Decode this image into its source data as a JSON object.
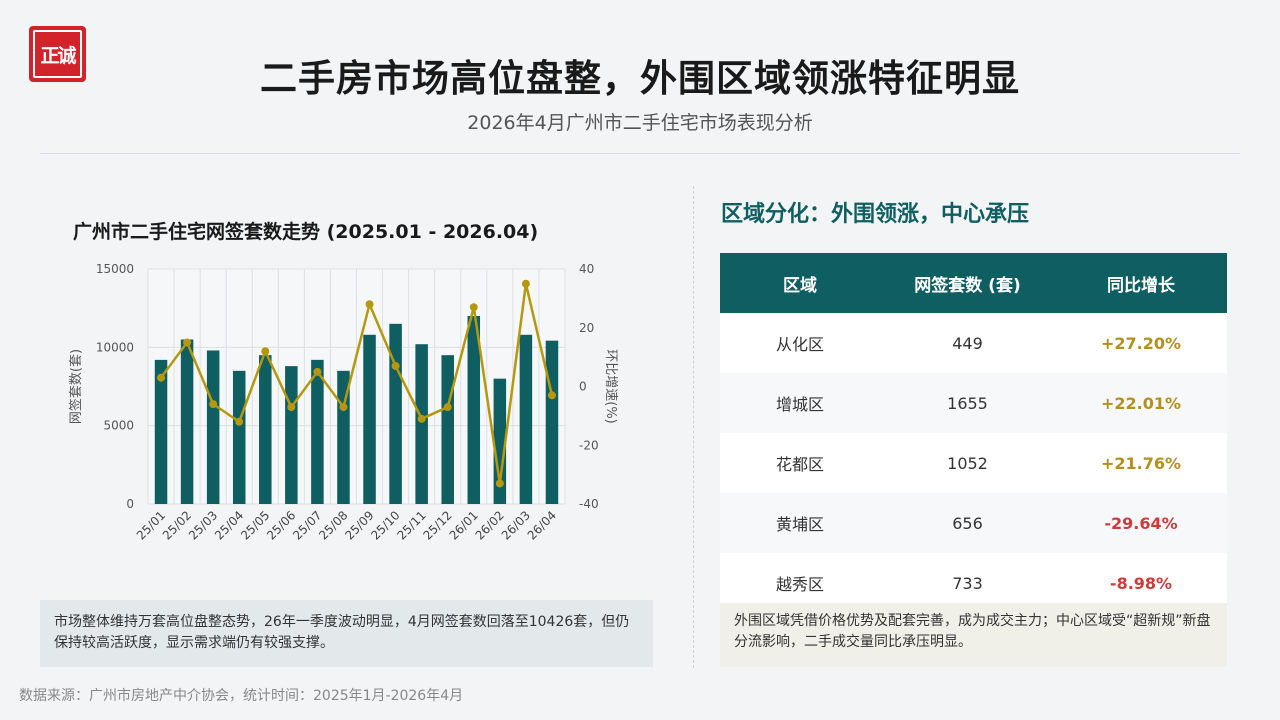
{
  "logo_text": "正诚",
  "title": "二手房市场高位盘整，外围区域领涨特征明显",
  "subtitle": "2026年4月广州市二手住宅市场表现分析",
  "left_note": "市场整体维持万套高位盘整态势，26年一季度波动明显，4月网签套数回落至10426套，但仍保持较高活跃度，显示需求端仍有较强支撑。",
  "region_title": "区域分化：外围领涨，中心承压",
  "table": {
    "headers": [
      "区域",
      "网签套数 (套)",
      "同比增长"
    ],
    "rows": [
      {
        "region": "从化区",
        "count": "449",
        "growth": "+27.20%",
        "sign": "pos"
      },
      {
        "region": "增城区",
        "count": "1655",
        "growth": "+22.01%",
        "sign": "pos"
      },
      {
        "region": "花都区",
        "count": "1052",
        "growth": "+21.76%",
        "sign": "pos"
      },
      {
        "region": "黄埔区",
        "count": "656",
        "growth": "-29.64%",
        "sign": "neg"
      },
      {
        "region": "越秀区",
        "count": "733",
        "growth": "-8.98%",
        "sign": "neg"
      }
    ]
  },
  "right_note": "外围区域凭借价格优势及配套完善，成为成交主力；中心区域受“超新规”新盘分流影响，二手成交量同比承压明显。",
  "source": "数据来源：广州市房地产中介协会，统计时间：2025年1月-2026年4月",
  "colors": {
    "bar": "#0f5e62",
    "line": "#b5980f",
    "positive": "#b38f1e",
    "negative": "#d03a3a"
  },
  "chart_data": {
    "type": "bar+line",
    "title": "广州市二手住宅网签套数走势 (2025.01 - 2026.04)",
    "categories": [
      "25/01",
      "25/02",
      "25/03",
      "25/04",
      "25/05",
      "25/06",
      "25/07",
      "25/08",
      "25/09",
      "25/10",
      "25/11",
      "25/12",
      "26/01",
      "26/02",
      "26/03",
      "26/04"
    ],
    "series": [
      {
        "name": "",
        "axis": "left",
        "kind": "bar",
        "values": [
          9200,
          10500,
          9800,
          8500,
          9500,
          8800,
          9200,
          8500,
          10800,
          11500,
          10200,
          9500,
          12000,
          8000,
          10800,
          10426
        ]
      },
      {
        "name": "",
        "axis": "right",
        "kind": "line",
        "values": [
          3,
          15,
          -6,
          -12,
          12,
          -7,
          5,
          -7,
          28,
          7,
          -11,
          -7,
          27,
          -33,
          35,
          -3
        ]
      }
    ],
    "ylabel": "网签套数(套)",
    "y2label": "环比增速(%)",
    "ylim": [
      0,
      15000
    ],
    "y2lim": [
      -40,
      40
    ],
    "yticks": [
      0,
      5000,
      10000,
      15000
    ],
    "y2ticks": [
      -40,
      -20,
      0,
      20,
      40
    ],
    "grid": true
  }
}
